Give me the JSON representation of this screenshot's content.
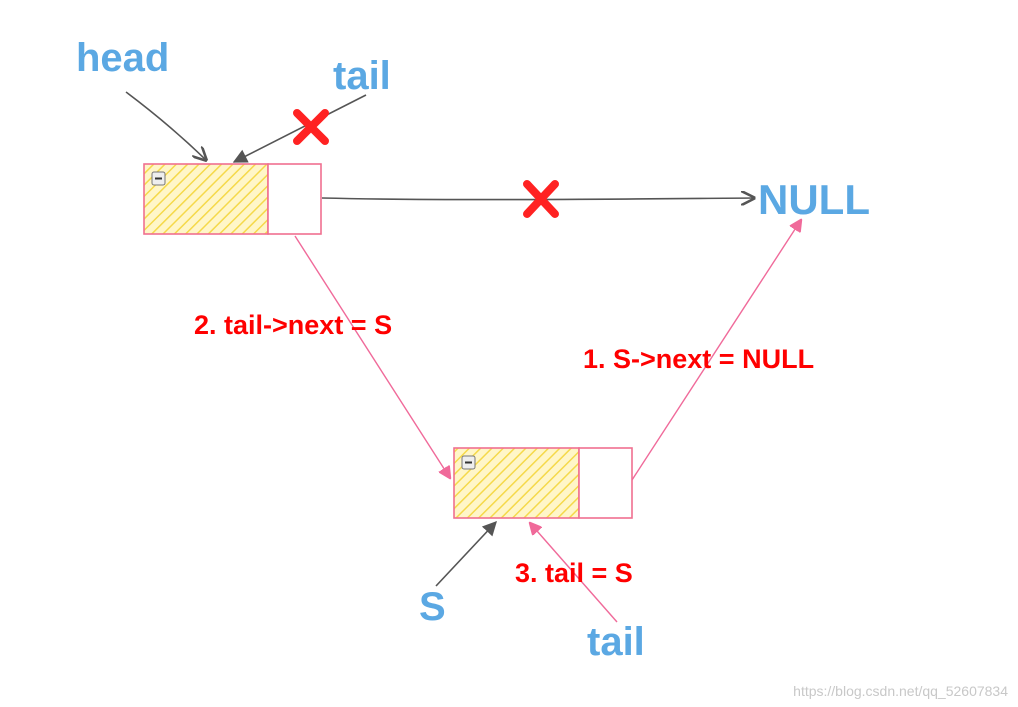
{
  "labels": {
    "head": "head",
    "tail_top": "tail",
    "null": "NULL",
    "step2": "2. tail->next = S",
    "step1": "1. S->next = NULL",
    "step3": "3. tail = S",
    "s": "S",
    "tail_bottom": "tail"
  },
  "marks": {
    "cross": "X"
  },
  "watermark": "https://blog.csdn.net/qq_52607834",
  "colors": {
    "blue_text": "#5ba8e3",
    "red_text": "#ff0000",
    "node_border": "#f07090",
    "node_fill": "#ffe680",
    "gray_arrow": "#555555",
    "pink_arrow": "#f06a9a",
    "cross": "#ff2222"
  },
  "icons": {
    "collapse": "minus-box-icon"
  }
}
